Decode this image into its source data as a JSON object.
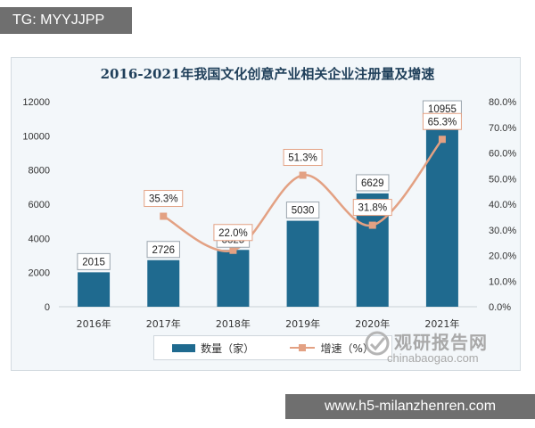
{
  "top_tag": "TG: MYYJJPP",
  "watermark_url": "www.h5-milanzhenren.com",
  "brand": {
    "name": "观研报告网",
    "url": "chinabaogao.com"
  },
  "chart_data": {
    "type": "bar",
    "title": "2016-2021年我国文化创意产业相关企业注册量及增速",
    "categories": [
      "2016年",
      "2017年",
      "2018年",
      "2019年",
      "2020年",
      "2021年"
    ],
    "left_axis": {
      "range": [
        0,
        12000
      ],
      "ticks": [
        "0",
        "2000",
        "4000",
        "6000",
        "8000",
        "10000",
        "12000"
      ]
    },
    "right_axis": {
      "range": [
        0,
        80
      ],
      "ticks": [
        "0.0%",
        "10.0%",
        "20.0%",
        "30.0%",
        "40.0%",
        "50.0%",
        "60.0%",
        "70.0%",
        "80.0%"
      ]
    },
    "series": [
      {
        "name": "数量（家）",
        "type": "bar",
        "axis": "left",
        "color": "#1f6a8f",
        "values": [
          2015,
          2726,
          3325,
          5030,
          6629,
          10955
        ],
        "labels": [
          "2015",
          "2726",
          "3325",
          "5030",
          "6629",
          "10955"
        ]
      },
      {
        "name": "增速（%）",
        "type": "line",
        "axis": "right",
        "color": "#e3a183",
        "values": [
          null,
          35.3,
          22.0,
          51.3,
          31.8,
          65.3
        ],
        "labels": [
          "",
          "35.3%",
          "22.0%",
          "51.3%",
          "31.8%",
          "65.3%"
        ]
      }
    ],
    "grid": false,
    "legend_position": "bottom"
  }
}
